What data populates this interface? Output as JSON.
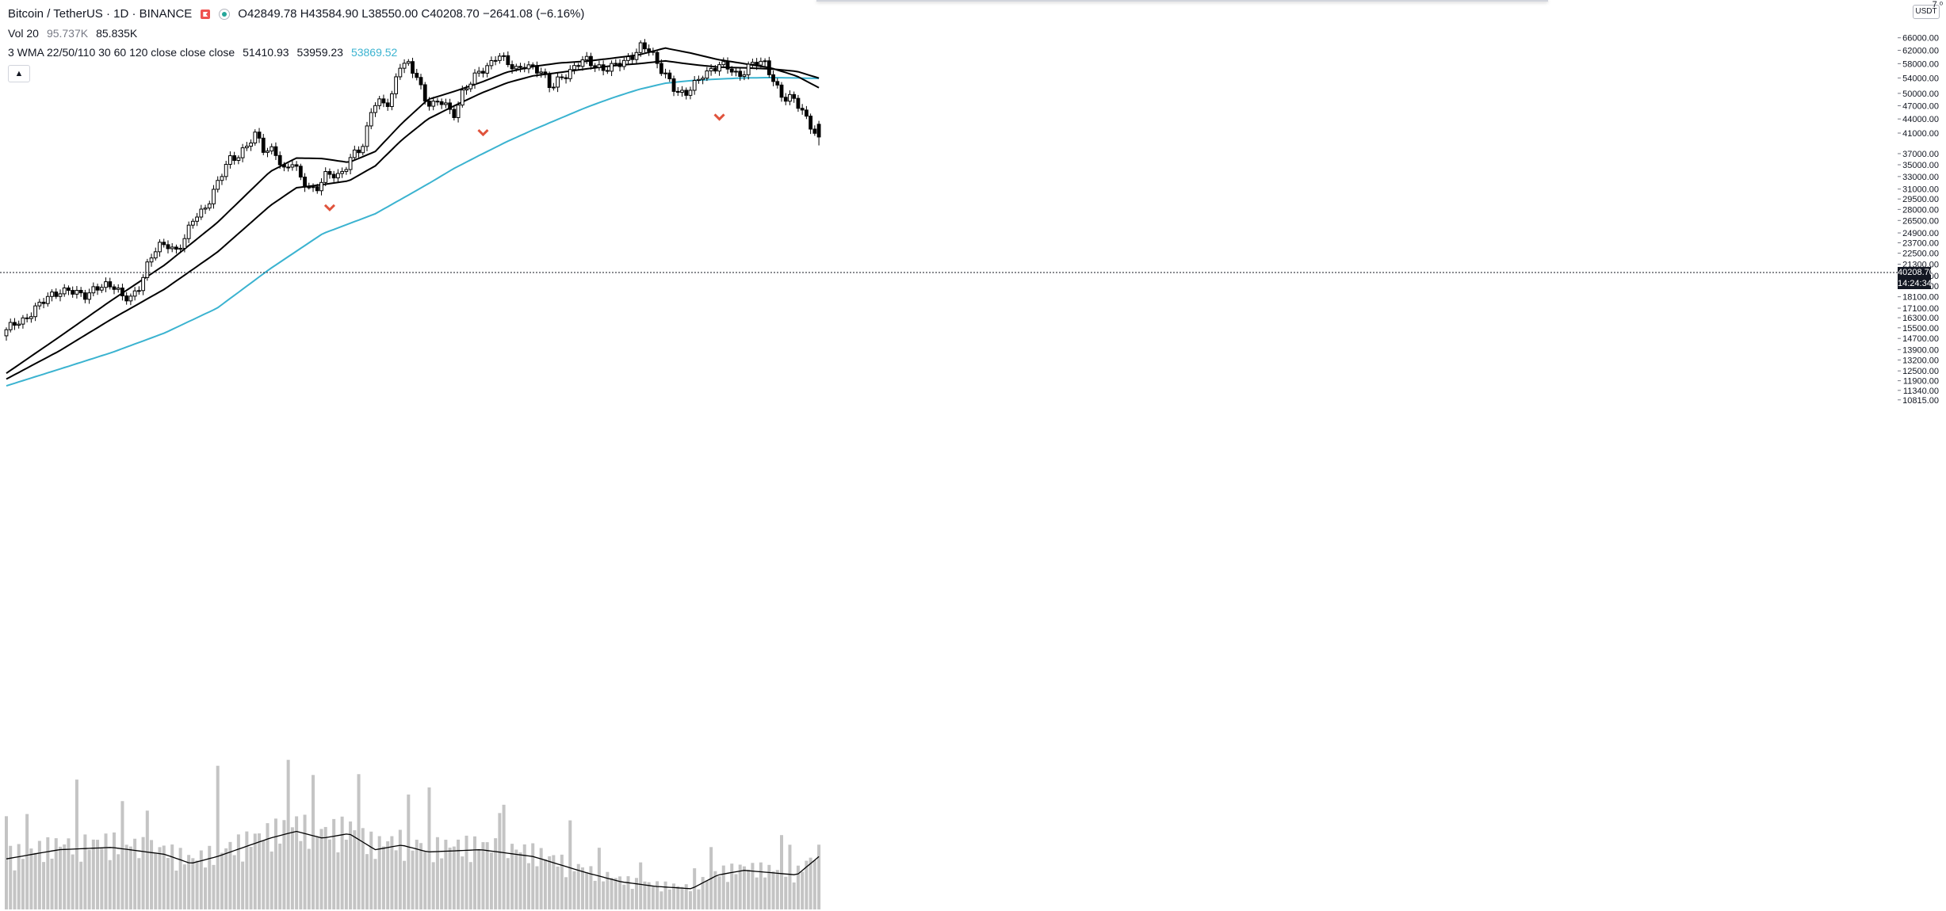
{
  "legend": {
    "symbol": "Bitcoin / TetherUS · 1D · BINANCE",
    "open": "O42849.78",
    "high": "H43584.90",
    "low": "L38550.00",
    "close": "C40208.70",
    "change": "−2641.08 (−6.16%)",
    "vol_label": "Vol 20",
    "vol_value": "95.737K",
    "vol_ma": "85.835K",
    "wma_label": "3 WMA 22/50/110 30 60 120 close close close",
    "wma1": "51410.93",
    "wma2": "53959.23",
    "wma3": "53869.52"
  },
  "axis": {
    "currency": "USDT",
    "corner": "7 ᵒ",
    "last_price": "40208.70",
    "countdown": "14:24:34"
  },
  "colors": {
    "candle": "#000000",
    "candle_up_fill": "#ffffff",
    "wma_dark": "#000000",
    "wma_cyan": "#3bb3d0",
    "volume": "#c4c4c4",
    "marker": "#e0533c"
  },
  "chart_data": {
    "type": "candlestick",
    "y_scale": "log",
    "y_ticks": [
      "66000.00",
      "62000.00",
      "58000.00",
      "54000.00",
      "50000.00",
      "47000.00",
      "44000.00",
      "41000.00",
      "37000.00",
      "35000.00",
      "33000.00",
      "31000.00",
      "29500.00",
      "28000.00",
      "26500.00",
      "24900.00",
      "23700.00",
      "22500.00",
      "21300.00",
      "20100.00",
      "19100.00",
      "18100.00",
      "17100.00",
      "16300.00",
      "15500.00",
      "14700.00",
      "13900.00",
      "13200.00",
      "12500.00",
      "11900.00",
      "11340.00",
      "10815.00"
    ],
    "close_anchors": [
      15200,
      15800,
      16200,
      17000,
      17500,
      18100,
      18700,
      18900,
      18200,
      18000,
      19200,
      19300,
      18900,
      18000,
      18200,
      19300,
      21500,
      23200,
      23800,
      22800,
      24000,
      26800,
      28000,
      30100,
      32800,
      35800,
      36900,
      39000,
      40500,
      36800,
      38500,
      34000,
      35200,
      32500,
      31200,
      31600,
      33500,
      32500,
      35000,
      37500,
      38000,
      47000,
      48500,
      47900,
      57000,
      57500,
      55000,
      48000,
      46800,
      48000,
      44800,
      50000,
      52500,
      55500,
      57800,
      61200,
      58000,
      55800,
      58200,
      57200,
      54800,
      51000,
      54700,
      55500,
      57500,
      58900,
      57800,
      56600,
      56800,
      58000,
      60500,
      63600,
      61800,
      57000,
      55000,
      50800,
      49000,
      52000,
      55500,
      56500,
      57200,
      56500,
      54800,
      57200,
      58000,
      57600,
      53500,
      48900,
      48500,
      46000,
      43200,
      40208.7
    ],
    "wma_22_anchors": [
      [
        0,
        12350
      ],
      [
        60,
        14800
      ],
      [
        120,
        17800
      ],
      [
        180,
        21200
      ],
      [
        240,
        26200
      ],
      [
        300,
        33800
      ],
      [
        330,
        36200
      ],
      [
        360,
        36100
      ],
      [
        390,
        35400
      ],
      [
        420,
        37400
      ],
      [
        450,
        43000
      ],
      [
        480,
        48500
      ],
      [
        510,
        50500
      ],
      [
        540,
        52800
      ],
      [
        570,
        55600
      ],
      [
        600,
        57200
      ],
      [
        630,
        58200
      ],
      [
        660,
        58700
      ],
      [
        690,
        59600
      ],
      [
        720,
        60600
      ],
      [
        750,
        62700
      ],
      [
        780,
        61100
      ],
      [
        810,
        59200
      ],
      [
        840,
        58000
      ],
      [
        870,
        56800
      ],
      [
        900,
        54500
      ],
      [
        925,
        51410.93
      ]
    ],
    "wma_50_anchors": [
      [
        0,
        12000
      ],
      [
        60,
        13800
      ],
      [
        120,
        16200
      ],
      [
        180,
        18800
      ],
      [
        240,
        22600
      ],
      [
        300,
        28500
      ],
      [
        330,
        31200
      ],
      [
        360,
        31700
      ],
      [
        390,
        32300
      ],
      [
        420,
        34800
      ],
      [
        450,
        39600
      ],
      [
        480,
        44000
      ],
      [
        510,
        47000
      ],
      [
        540,
        50000
      ],
      [
        570,
        52700
      ],
      [
        600,
        54600
      ],
      [
        630,
        55500
      ],
      [
        660,
        56500
      ],
      [
        690,
        57400
      ],
      [
        720,
        58000
      ],
      [
        750,
        58800
      ],
      [
        780,
        57800
      ],
      [
        810,
        57000
      ],
      [
        840,
        56800
      ],
      [
        870,
        56500
      ],
      [
        900,
        55800
      ],
      [
        925,
        53959.23
      ]
    ],
    "wma_110_anchors": [
      [
        0,
        11600
      ],
      [
        60,
        12600
      ],
      [
        120,
        13700
      ],
      [
        180,
        15100
      ],
      [
        240,
        17100
      ],
      [
        300,
        20800
      ],
      [
        360,
        24800
      ],
      [
        420,
        27400
      ],
      [
        480,
        31800
      ],
      [
        510,
        34400
      ],
      [
        540,
        36800
      ],
      [
        570,
        39300
      ],
      [
        600,
        41700
      ],
      [
        630,
        44100
      ],
      [
        660,
        46600
      ],
      [
        690,
        48900
      ],
      [
        720,
        51000
      ],
      [
        750,
        52600
      ],
      [
        780,
        53300
      ],
      [
        810,
        53700
      ],
      [
        840,
        54000
      ],
      [
        870,
        54100
      ],
      [
        900,
        54000
      ],
      [
        925,
        53869.52
      ]
    ],
    "markers_low_price": [
      29900,
      43500,
      47000
    ],
    "last_bar": {
      "open": 42849.78,
      "high": 43584.9,
      "low": 38550.0,
      "close": 40208.7
    },
    "volume_ma_anchors": [
      [
        0,
        0.22
      ],
      [
        60,
        0.26
      ],
      [
        120,
        0.27
      ],
      [
        180,
        0.24
      ],
      [
        210,
        0.2
      ],
      [
        240,
        0.23
      ],
      [
        300,
        0.31
      ],
      [
        330,
        0.34
      ],
      [
        360,
        0.31
      ],
      [
        390,
        0.33
      ],
      [
        420,
        0.26
      ],
      [
        450,
        0.28
      ],
      [
        480,
        0.25
      ],
      [
        540,
        0.26
      ],
      [
        600,
        0.23
      ],
      [
        660,
        0.16
      ],
      [
        700,
        0.12
      ],
      [
        740,
        0.1
      ],
      [
        780,
        0.09
      ],
      [
        810,
        0.15
      ],
      [
        840,
        0.17
      ],
      [
        870,
        0.16
      ],
      [
        900,
        0.15
      ],
      [
        925,
        0.23
      ]
    ]
  }
}
